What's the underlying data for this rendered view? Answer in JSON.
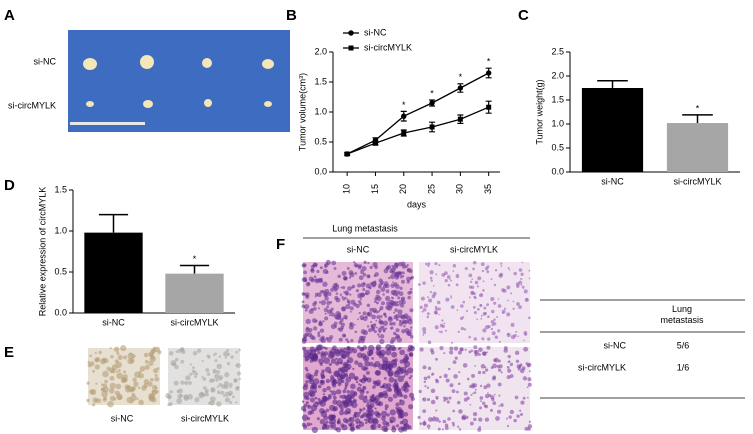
{
  "panel_labels": [
    "A",
    "B",
    "C",
    "D",
    "E",
    "F"
  ],
  "panel_a": {
    "rows": [
      "si-NC",
      "si-circMYLK"
    ]
  },
  "chart_data": [
    {
      "type": "line",
      "ylabel": "Tumor volume(cm³)",
      "xlabel": "days",
      "x": [
        10,
        15,
        20,
        25,
        30,
        35
      ],
      "xlim": [
        7.5,
        37
      ],
      "xticks": [
        10,
        15,
        20,
        25,
        30,
        35
      ],
      "ylim": [
        0,
        2
      ],
      "yticks": [
        {
          "value": 0,
          "label": "0.0"
        },
        0.5,
        {
          "value": 1,
          "label": "1.0"
        },
        1.5,
        {
          "value": 2,
          "label": "2.0"
        }
      ],
      "legend": "top-left",
      "series": [
        {
          "name": "si-NC",
          "color": "#000000",
          "marker": "circle",
          "values": [
            0.3,
            0.53,
            0.93,
            1.15,
            1.4,
            1.65
          ],
          "errors": [
            0.02,
            0.04,
            0.08,
            0.05,
            0.07,
            0.08
          ],
          "significance": [
            null,
            null,
            "*",
            "*",
            "*",
            "*"
          ]
        },
        {
          "name": "si-circMYLK",
          "color": "#000000",
          "marker": "square",
          "values": [
            0.3,
            0.48,
            0.65,
            0.75,
            0.88,
            1.08
          ],
          "errors": [
            0.02,
            0.03,
            0.05,
            0.08,
            0.07,
            0.1
          ]
        }
      ]
    },
    {
      "type": "bar",
      "ylabel": "Tumor weight(g)",
      "categories": [
        "si-NC",
        "si-circMYLK"
      ],
      "values": [
        1.75,
        1.02
      ],
      "errors": [
        0.15,
        0.17
      ],
      "colors": [
        "#000000",
        "#a6a6a6"
      ],
      "significance": [
        null,
        "*"
      ],
      "ylim": [
        0,
        2.5
      ],
      "yticks": [
        {
          "value": 0,
          "label": "0.0"
        },
        0.5,
        {
          "value": 1,
          "label": "1.0"
        },
        1.5,
        {
          "value": 2,
          "label": "2.0"
        },
        2.5
      ]
    },
    {
      "type": "bar",
      "ylabel": "Relative expression of circMYLK",
      "categories": [
        "si-NC",
        "si-circMYLK"
      ],
      "values": [
        0.98,
        0.48
      ],
      "errors": [
        0.22,
        0.1
      ],
      "colors": [
        "#000000",
        "#a6a6a6"
      ],
      "significance": [
        null,
        "*"
      ],
      "ylim": [
        0,
        1.5
      ],
      "yticks": [
        {
          "value": 0,
          "label": "0.0"
        },
        0.5,
        {
          "value": 1,
          "label": "1.0"
        },
        1.5
      ]
    }
  ],
  "panel_e": {
    "labels": [
      "si-NC",
      "si-circMYLK"
    ]
  },
  "panel_f": {
    "title": "Lung metastasis",
    "columns": [
      "si-NC",
      "si-circMYLK"
    ],
    "table": {
      "header": "Lung metastasis",
      "rows": [
        [
          "si-NC",
          "5/6"
        ],
        [
          "si-circMYLK",
          "1/6"
        ]
      ]
    }
  }
}
